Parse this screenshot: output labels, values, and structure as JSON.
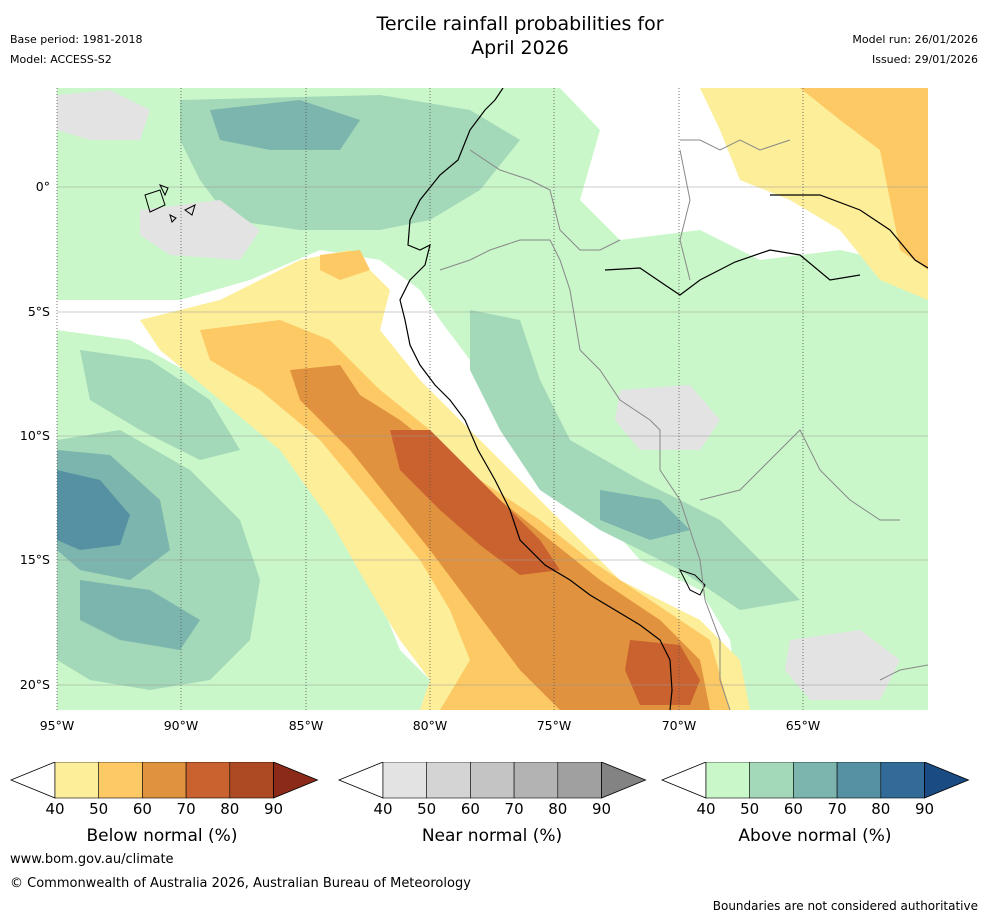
{
  "title_line1": "Tercile rainfall probabilities for",
  "title_line2": "April 2026",
  "meta_left": {
    "base_period": "Base period: 1981-2018",
    "model": "Model: ACCESS-S2"
  },
  "meta_right": {
    "model_run": "Model run: 26/01/2026",
    "issued": "Issued: 29/01/2026"
  },
  "lat_labels": [
    "0°",
    "5°S",
    "10°S",
    "15°S",
    "20°S"
  ],
  "lon_labels": [
    "95°W",
    "90°W",
    "85°W",
    "80°W",
    "75°W",
    "70°W",
    "65°W"
  ],
  "legends": {
    "below": {
      "title": "Below normal (%)",
      "ticks": [
        "40",
        "50",
        "60",
        "70",
        "80",
        "90"
      ],
      "colors": [
        "#fdee99",
        "#fdc964",
        "#e0923e",
        "#c9622e",
        "#ad4a24",
        "#8c2a1a"
      ]
    },
    "near": {
      "title": "Near normal (%)",
      "ticks": [
        "40",
        "50",
        "60",
        "70",
        "80",
        "90"
      ],
      "colors": [
        "#e3e3e3",
        "#d4d4d4",
        "#c4c4c4",
        "#b3b3b3",
        "#a0a0a0",
        "#838383"
      ]
    },
    "above": {
      "title": "Above normal (%)",
      "ticks": [
        "40",
        "50",
        "60",
        "70",
        "80",
        "90"
      ],
      "colors": [
        "#c9f7c9",
        "#a3d8b8",
        "#7bb5ad",
        "#5591a2",
        "#326b98",
        "#1a4b82"
      ]
    }
  },
  "colors": {
    "below_40": "#fdee99",
    "below_50": "#fdc964",
    "below_60": "#e0923e",
    "below_70": "#c9622e",
    "near_40": "#e3e3e3",
    "near_50": "#d4d4d4",
    "above_40": "#c9f7c9",
    "above_50": "#a3d8b8",
    "above_60": "#7bb5ad",
    "above_70": "#5591a2",
    "above_80": "#326b98"
  },
  "footer": {
    "url": "www.bom.gov.au/climate",
    "copyright": "© Commonwealth of Australia 2026, Australian Bureau of Meteorology",
    "note": "Boundaries are not considered authoritative"
  }
}
